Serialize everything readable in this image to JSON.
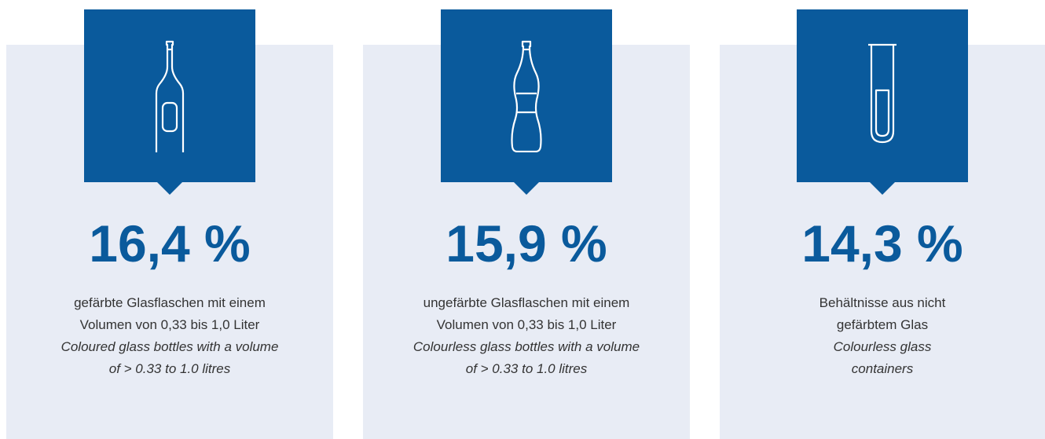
{
  "cards": [
    {
      "value": "16,4 %",
      "lines_de": [
        "gefärbte Glasflaschen mit einem",
        "Volumen von 0,33 bis 1,0 Liter"
      ],
      "lines_en": [
        "Coloured glass bottles with a volume",
        "of > 0.33 to 1.0 litres"
      ]
    },
    {
      "value": "15,9 %",
      "lines_de": [
        "ungefärbte Glasflaschen mit einem",
        "Volumen von 0,33 bis 1,0 Liter"
      ],
      "lines_en": [
        "Colourless glass bottles with a volume",
        "of > 0.33 to 1.0 litres"
      ]
    },
    {
      "value": "14,3 %",
      "lines_de": [
        "Behältnisse aus nicht",
        "gefärbtem Glas"
      ],
      "lines_en": [
        "Colourless glass",
        "containers"
      ]
    }
  ]
}
